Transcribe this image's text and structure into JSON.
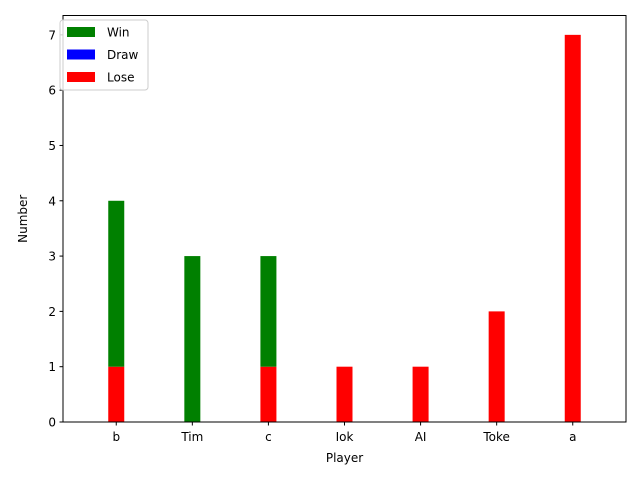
{
  "chart_data": {
    "type": "bar",
    "stacked": true,
    "categories": [
      "b",
      "Tim",
      "c",
      "Iok",
      "AI",
      "Toke",
      "a"
    ],
    "series": [
      {
        "name": "Lose",
        "color": "#ff0000",
        "values": [
          1,
          0,
          1,
          1,
          1,
          2,
          7
        ]
      },
      {
        "name": "Draw",
        "color": "#0000ff",
        "values": [
          0,
          0,
          0,
          0,
          0,
          0,
          0
        ]
      },
      {
        "name": "Win",
        "color": "#008000",
        "values": [
          3,
          3,
          2,
          0,
          0,
          0,
          0
        ]
      }
    ],
    "legend": [
      "Win",
      "Draw",
      "Lose"
    ],
    "legend_position": "top-left",
    "xlabel": "Player",
    "ylabel": "Number",
    "ylim": [
      0,
      7.35
    ],
    "yticks": [
      0,
      1,
      2,
      3,
      4,
      5,
      6,
      7
    ],
    "grid": false
  }
}
